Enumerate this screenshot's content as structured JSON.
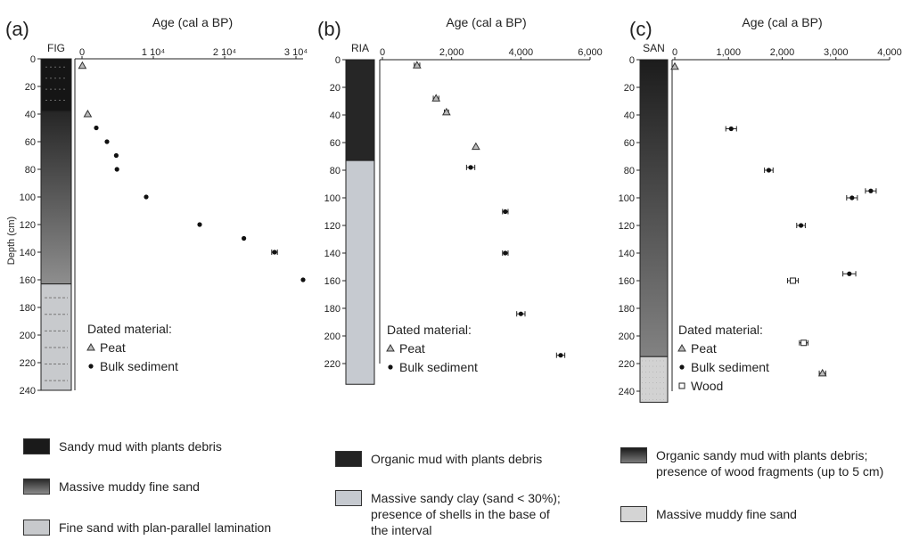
{
  "chart_data": [
    {
      "type": "scatter",
      "panel": "(a)",
      "core": "FIG",
      "title": "Age (cal a BP)",
      "ylabel": "Depth (cm)",
      "xlim": [
        0,
        31000
      ],
      "ylim": [
        0,
        240
      ],
      "x_ticks": [
        {
          "value": 0,
          "label": "0"
        },
        {
          "value": 10000,
          "label": "1 10⁴"
        },
        {
          "value": 20000,
          "label": "2 10⁴"
        },
        {
          "value": 30000,
          "label": "3 10⁴"
        }
      ],
      "y_ticks": [
        0,
        20,
        40,
        60,
        80,
        100,
        120,
        140,
        160,
        180,
        200,
        220,
        240
      ],
      "legend_title": "Dated material:",
      "legend": [
        {
          "symbol": "triangle",
          "label": "Peat"
        },
        {
          "symbol": "circle",
          "label": "Bulk sediment"
        }
      ],
      "units": [
        {
          "top": 0,
          "bottom": 38,
          "lith": "sandy-mud"
        },
        {
          "top": 38,
          "bottom": 163,
          "lith": "massive-muddy"
        },
        {
          "top": 163,
          "bottom": 240,
          "lith": "fine-lam"
        }
      ],
      "points": [
        {
          "x": 50,
          "y": 5,
          "material": "peat",
          "err": 0
        },
        {
          "x": 800,
          "y": 40,
          "material": "peat",
          "err": 0
        },
        {
          "x": 2000,
          "y": 50,
          "material": "bulk",
          "err": 0
        },
        {
          "x": 3500,
          "y": 60,
          "material": "bulk",
          "err": 0
        },
        {
          "x": 4800,
          "y": 70,
          "material": "bulk",
          "err": 0
        },
        {
          "x": 4900,
          "y": 80,
          "material": "bulk",
          "err": 0
        },
        {
          "x": 9000,
          "y": 100,
          "material": "bulk",
          "err": 0
        },
        {
          "x": 16500,
          "y": 120,
          "material": "bulk",
          "err": 0
        },
        {
          "x": 22700,
          "y": 130,
          "material": "bulk",
          "err": 0
        },
        {
          "x": 27000,
          "y": 140,
          "material": "bulk",
          "err": 400
        },
        {
          "x": 31000,
          "y": 160,
          "material": "bulk",
          "err": 0
        }
      ]
    },
    {
      "type": "scatter",
      "panel": "(b)",
      "core": "RIA",
      "title": "Age (cal a BP)",
      "xlim": [
        0,
        6000
      ],
      "ylim": [
        0,
        230
      ],
      "x_ticks": [
        {
          "value": 0,
          "label": "0"
        },
        {
          "value": 2000,
          "label": "2,000"
        },
        {
          "value": 4000,
          "label": "4,000"
        },
        {
          "value": 6000,
          "label": "6,000"
        }
      ],
      "y_ticks": [
        0,
        20,
        40,
        60,
        80,
        100,
        120,
        140,
        160,
        180,
        200,
        220
      ],
      "legend_title": "Dated material:",
      "legend": [
        {
          "symbol": "triangle",
          "label": "Peat"
        },
        {
          "symbol": "circle",
          "label": "Bulk sediment"
        }
      ],
      "units": [
        {
          "top": 0,
          "bottom": 73,
          "lith": "organic-mud"
        },
        {
          "top": 73,
          "bottom": 235,
          "lith": "sandy-clay"
        }
      ],
      "points": [
        {
          "x": 1000,
          "y": 4,
          "material": "peat",
          "err": 80
        },
        {
          "x": 1550,
          "y": 28,
          "material": "peat",
          "err": 80
        },
        {
          "x": 1850,
          "y": 38,
          "material": "peat",
          "err": 60
        },
        {
          "x": 2700,
          "y": 63,
          "material": "peat",
          "err": 0
        },
        {
          "x": 2550,
          "y": 78,
          "material": "bulk",
          "err": 120
        },
        {
          "x": 3550,
          "y": 110,
          "material": "bulk",
          "err": 80
        },
        {
          "x": 3550,
          "y": 140,
          "material": "bulk",
          "err": 80
        },
        {
          "x": 4000,
          "y": 184,
          "material": "bulk",
          "err": 120
        },
        {
          "x": 5150,
          "y": 214,
          "material": "bulk",
          "err": 120
        }
      ]
    },
    {
      "type": "scatter",
      "panel": "(c)",
      "core": "SAN",
      "title": "Age (cal a BP)",
      "xlim": [
        0,
        4000
      ],
      "ylim": [
        0,
        240
      ],
      "x_ticks": [
        {
          "value": 0,
          "label": "0"
        },
        {
          "value": 1000,
          "label": "1,000"
        },
        {
          "value": 2000,
          "label": "2,000"
        },
        {
          "value": 3000,
          "label": "3,000"
        },
        {
          "value": 4000,
          "label": "4,000"
        }
      ],
      "y_ticks": [
        0,
        20,
        40,
        60,
        80,
        100,
        120,
        140,
        160,
        180,
        200,
        220,
        240
      ],
      "legend_title": "Dated material:",
      "legend": [
        {
          "symbol": "triangle",
          "label": "Peat"
        },
        {
          "symbol": "circle",
          "label": "Bulk sediment"
        },
        {
          "symbol": "square",
          "label": "Wood"
        }
      ],
      "units": [
        {
          "top": 0,
          "bottom": 215,
          "lith": "organic-sandy"
        },
        {
          "top": 215,
          "bottom": 248,
          "lith": "massive-c"
        }
      ],
      "points": [
        {
          "x": 0,
          "y": 5,
          "material": "peat",
          "err": 0
        },
        {
          "x": 1050,
          "y": 50,
          "material": "bulk",
          "err": 100
        },
        {
          "x": 1750,
          "y": 80,
          "material": "bulk",
          "err": 80
        },
        {
          "x": 3650,
          "y": 95,
          "material": "bulk",
          "err": 100
        },
        {
          "x": 3300,
          "y": 100,
          "material": "bulk",
          "err": 100
        },
        {
          "x": 2350,
          "y": 120,
          "material": "bulk",
          "err": 80
        },
        {
          "x": 3250,
          "y": 155,
          "material": "bulk",
          "err": 120
        },
        {
          "x": 2200,
          "y": 160,
          "material": "wood",
          "err": 100
        },
        {
          "x": 2400,
          "y": 205,
          "material": "wood",
          "err": 80
        },
        {
          "x": 2750,
          "y": 227,
          "material": "peat",
          "err": 60
        }
      ]
    }
  ],
  "lithology_legend": {
    "a": [
      {
        "label": "Sandy mud with plants debris"
      },
      {
        "label": "Massive muddy fine sand"
      },
      {
        "label": "Fine sand with plan-parallel lamination"
      }
    ],
    "b": [
      {
        "label": "Organic mud with plants debris"
      },
      {
        "label": "Massive sandy clay (sand < 30%);\npresence of shells in the base of\nthe interval"
      }
    ],
    "c": [
      {
        "label": "Organic sandy mud with plants debris;\npresence of wood fragments (up to 5 cm)"
      },
      {
        "label": "Massive muddy fine sand"
      }
    ]
  }
}
